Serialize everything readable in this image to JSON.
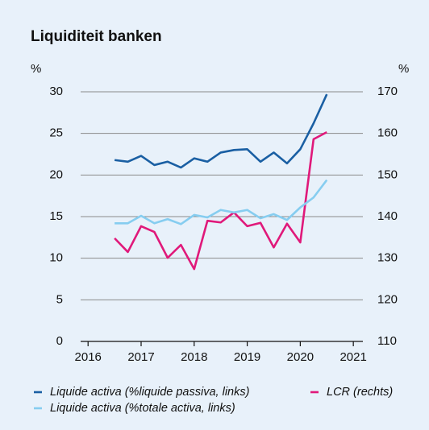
{
  "chart_data": {
    "type": "line",
    "title": "Liquiditeit banken",
    "ylabel": "%",
    "y2label": "%",
    "x": [
      2016.5,
      2016.75,
      2017,
      2017.25,
      2017.5,
      2017.75,
      2018,
      2018.25,
      2018.5,
      2018.75,
      2019,
      2019.25,
      2019.5,
      2019.75,
      2020,
      2020.25,
      2020.5
    ],
    "xlim": [
      2015.86,
      2021.18
    ],
    "xticks": [
      2016,
      2017,
      2018,
      2019,
      2020,
      2021
    ],
    "ylim": [
      0,
      30
    ],
    "yticks": [
      0,
      5,
      10,
      15,
      20,
      25,
      30
    ],
    "y2lim": [
      110,
      170
    ],
    "y2ticks": [
      110,
      120,
      130,
      140,
      150,
      160,
      170
    ],
    "grid": true,
    "series": [
      {
        "name": "Liquide activa (%liquide passiva, links)",
        "color": "#1a5fa3",
        "values": [
          21.8,
          21.6,
          22.3,
          21.2,
          21.6,
          20.9,
          22.0,
          21.6,
          22.7,
          23.0,
          23.1,
          21.6,
          22.7,
          21.4,
          23.1,
          26.2,
          29.7
        ]
      },
      {
        "name": "LCR (rechts)",
        "color": "#e0197a",
        "axis": "y2",
        "values": [
          134.8,
          131.5,
          137.7,
          136.3,
          130.1,
          133.2,
          127.4,
          139.0,
          138.6,
          141.0,
          137.7,
          138.5,
          132.6,
          138.3,
          133.8,
          158.6,
          160.3
        ]
      },
      {
        "name": "Liquide activa (%totale activa, links)",
        "color": "#86cdf0",
        "values": [
          14.2,
          14.2,
          15.1,
          14.2,
          14.7,
          14.1,
          15.2,
          14.9,
          15.8,
          15.5,
          15.8,
          14.8,
          15.3,
          14.6,
          16.1,
          17.3,
          19.4
        ]
      }
    ]
  }
}
